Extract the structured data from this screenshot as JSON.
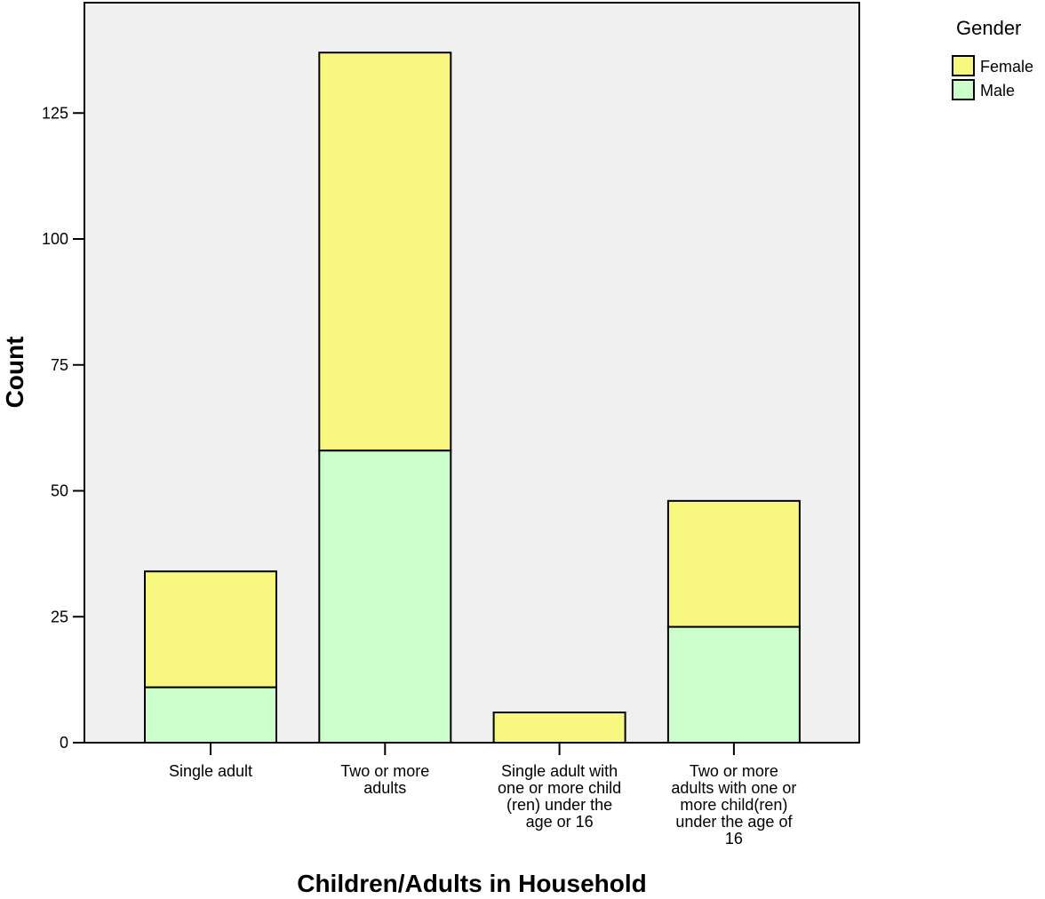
{
  "chart_data": {
    "type": "bar",
    "stacked": true,
    "title": "",
    "xlabel": "Children/Adults in Household",
    "ylabel": "Count",
    "ylim": [
      0,
      145
    ],
    "yticks": [
      0,
      25,
      50,
      75,
      100,
      125
    ],
    "grid": false,
    "legend": {
      "title": "Gender",
      "position": "top-right"
    },
    "categories": [
      "Single adult",
      "Two or more adults",
      "Single adult with one or more child (ren) under the age or 16",
      "Two or more adults with one or more child(ren) under the age of 16"
    ],
    "category_label_lines": [
      [
        "Single adult"
      ],
      [
        "Two or more",
        "adults"
      ],
      [
        "Single adult with",
        "one or more child",
        "(ren) under the",
        "age or 16"
      ],
      [
        "Two or more",
        "adults with one or",
        "more child(ren)",
        "under the age of",
        "16"
      ]
    ],
    "series": [
      {
        "name": "Male",
        "values": [
          11,
          58,
          0,
          23
        ],
        "color": "#ccffcc"
      },
      {
        "name": "Female",
        "values": [
          23,
          79,
          6,
          25
        ],
        "color": "#f8f880"
      }
    ],
    "colors": {
      "plot_background": "#f0f0f0",
      "bar_outline": "#000000"
    }
  }
}
